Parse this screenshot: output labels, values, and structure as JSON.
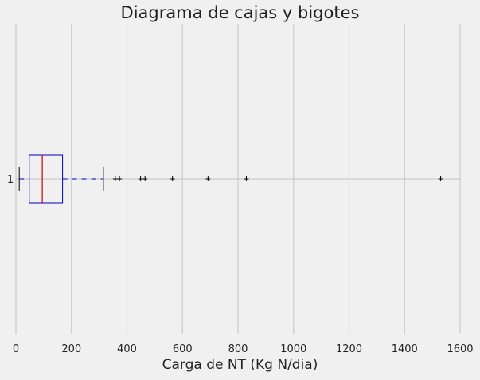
{
  "chart_data": {
    "type": "boxplot",
    "orientation": "horizontal",
    "title": "Diagrama de cajas y bigotes",
    "xlabel": "Carga de NT (Kg N/dia)",
    "ylabel": "",
    "xlim": [
      0,
      1600
    ],
    "x_ticks": [
      "0",
      "200",
      "400",
      "600",
      "800",
      "1000",
      "1200",
      "1400",
      "1600"
    ],
    "y_ticks": [
      "1"
    ],
    "grid": true,
    "boxes": [
      {
        "label": "1",
        "whisker_low": 12,
        "q1": 48,
        "median": 95,
        "q3": 168,
        "whisker_high": 315,
        "outliers": [
          358,
          373,
          449,
          465,
          564,
          692,
          830,
          1530
        ]
      }
    ],
    "colors": {
      "background": "#f0f0f0",
      "grid": "#cbcbcb",
      "box": "#0000cc",
      "median": "#cc0000",
      "whisker": "#0000cc",
      "cap": "#000000",
      "flier": "#000000"
    }
  }
}
